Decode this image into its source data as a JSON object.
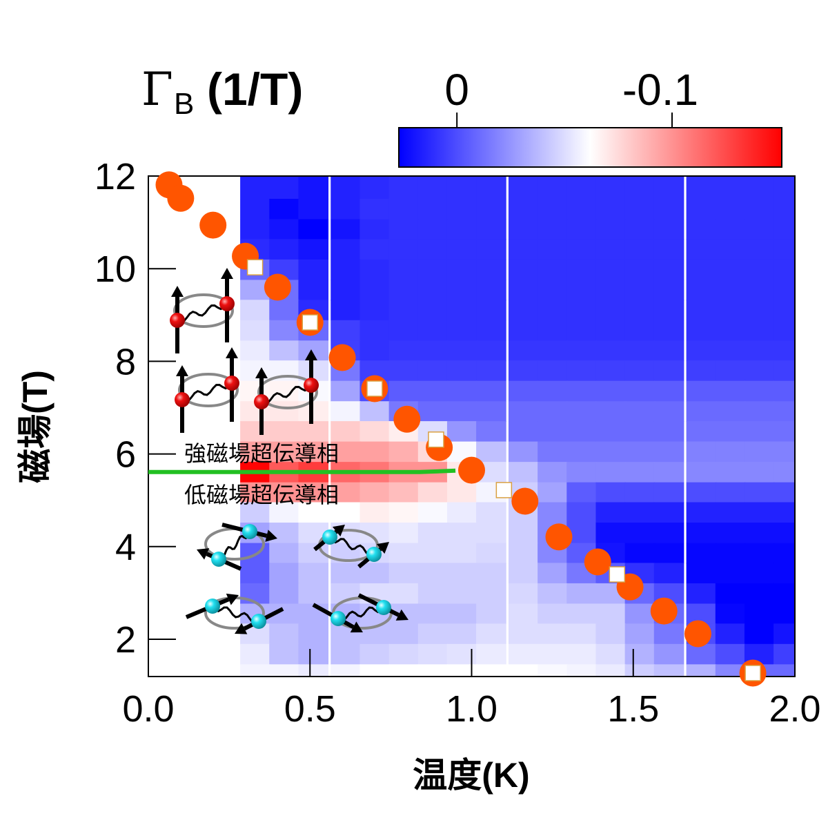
{
  "chart_data": {
    "type": "heatmap",
    "xlabel": "温度(K)",
    "ylabel": "磁場(T)",
    "xlim": [
      0,
      2.0
    ],
    "ylim": [
      1.2,
      12
    ],
    "x_ticks": [
      "0.0",
      "0.5",
      "1.0",
      "1.5",
      "2.0"
    ],
    "x_tick_values": [
      0,
      0.5,
      1.0,
      1.5,
      2.0
    ],
    "y_ticks": [
      "2",
      "4",
      "6",
      "8",
      "10",
      "12"
    ],
    "y_tick_values": [
      2,
      4,
      6,
      8,
      10,
      12
    ],
    "colorbar": {
      "title_symbol": "Γ",
      "title_subscript": "B",
      "title_unit": "(1/T)",
      "tick_labels": [
        "0",
        "-0.1"
      ],
      "tick_values": [
        0,
        -0.1
      ],
      "range": [
        0.027,
        -0.151
      ],
      "colors": {
        "low_end": "#0000ff",
        "mid": "#ffffff",
        "high_end": "#ff0000"
      },
      "mid_value": -0.062
    },
    "heatmap": {
      "T": [
        0.33,
        0.42,
        0.51,
        0.61,
        0.7,
        0.79,
        0.88,
        0.97,
        1.06,
        1.16,
        1.25,
        1.34,
        1.43,
        1.52,
        1.61,
        1.71,
        1.8,
        1.89,
        1.98
      ],
      "B": [
        11.73,
        11.29,
        10.85,
        10.42,
        9.98,
        9.54,
        9.11,
        8.67,
        8.23,
        7.8,
        7.36,
        6.92,
        6.49,
        6.05,
        5.61,
        5.17,
        4.74,
        4.3,
        3.86,
        3.43,
        2.99,
        2.55,
        2.12,
        1.68,
        1.24
      ],
      "values": [
        [
          0.015,
          0.015,
          0.02,
          0.015,
          0.012,
          0.01,
          0.01,
          0.01,
          0.01,
          0.01,
          0.01,
          0.01,
          0.01,
          0.01,
          0.01,
          0.01,
          0.01,
          0.01,
          0.01
        ],
        [
          0.015,
          0.025,
          0.02,
          0.015,
          0.01,
          0.01,
          0.01,
          0.01,
          0.01,
          0.01,
          0.01,
          0.01,
          0.01,
          0.01,
          0.01,
          0.01,
          0.01,
          0.01,
          0.01
        ],
        [
          0.015,
          0.02,
          0.027,
          0.02,
          0.012,
          0.01,
          0.01,
          0.01,
          0.01,
          0.01,
          0.01,
          0.01,
          0.01,
          0.01,
          0.01,
          0.01,
          0.01,
          0.01,
          0.01
        ],
        [
          0.012,
          0.015,
          0.02,
          0.015,
          0.01,
          0.01,
          0.01,
          0.01,
          0.01,
          0.01,
          0.01,
          0.01,
          0.01,
          0.01,
          0.01,
          0.01,
          0.01,
          0.01,
          0.01
        ],
        [
          -0.01,
          0.005,
          0.015,
          0.015,
          0.012,
          0.01,
          0.01,
          0.01,
          0.01,
          0.01,
          0.01,
          0.01,
          0.01,
          0.01,
          0.01,
          0.01,
          0.01,
          0.01,
          0.01
        ],
        [
          -0.032,
          -0.012,
          0.015,
          0.015,
          0.012,
          0.01,
          0.01,
          0.01,
          0.01,
          0.01,
          0.01,
          0.01,
          0.01,
          0.01,
          0.01,
          0.01,
          0.01,
          0.01,
          0.01
        ],
        [
          -0.048,
          -0.012,
          0.012,
          0.015,
          0.012,
          0.01,
          0.01,
          0.01,
          0.01,
          0.01,
          0.01,
          0.01,
          0.01,
          0.01,
          0.01,
          0.01,
          0.01,
          0.01,
          0.01
        ],
        [
          -0.05,
          -0.02,
          -0.01,
          0.005,
          0.01,
          0.01,
          0.01,
          0.01,
          0.01,
          0.01,
          0.01,
          0.01,
          0.01,
          0.01,
          0.01,
          0.01,
          0.01,
          0.01,
          0.01
        ],
        [
          -0.055,
          -0.04,
          -0.03,
          0.005,
          0.01,
          0.008,
          0.008,
          0.008,
          0.008,
          0.008,
          0.008,
          0.008,
          0.008,
          0.008,
          0.008,
          0.008,
          0.008,
          0.008,
          0.008
        ],
        [
          -0.058,
          -0.058,
          -0.05,
          -0.015,
          0.005,
          0.005,
          0.005,
          0.005,
          0.005,
          0.005,
          0.005,
          0.005,
          0.005,
          0.005,
          0.005,
          0.005,
          0.005,
          0.005,
          0.005
        ],
        [
          -0.065,
          -0.066,
          -0.06,
          -0.03,
          0.0,
          -0.005,
          -0.005,
          -0.005,
          -0.005,
          -0.005,
          -0.005,
          -0.005,
          -0.005,
          -0.005,
          -0.005,
          -0.005,
          -0.005,
          -0.005,
          -0.005
        ],
        [
          -0.07,
          -0.07,
          -0.068,
          -0.058,
          -0.04,
          -0.015,
          -0.01,
          -0.01,
          -0.01,
          -0.01,
          -0.01,
          -0.01,
          -0.01,
          -0.01,
          -0.01,
          -0.01,
          -0.01,
          -0.01,
          -0.01
        ],
        [
          -0.08,
          -0.08,
          -0.08,
          -0.08,
          -0.075,
          -0.068,
          -0.05,
          -0.025,
          -0.015,
          -0.01,
          -0.01,
          -0.01,
          -0.01,
          -0.01,
          -0.01,
          -0.012,
          -0.012,
          -0.012,
          -0.012
        ],
        [
          -0.095,
          -0.095,
          -0.095,
          -0.095,
          -0.095,
          -0.09,
          -0.075,
          -0.06,
          -0.04,
          -0.025,
          -0.015,
          -0.015,
          -0.015,
          -0.015,
          -0.015,
          -0.018,
          -0.018,
          -0.018,
          -0.018
        ],
        [
          -0.15,
          -0.12,
          -0.13,
          -0.115,
          -0.11,
          -0.1,
          -0.1,
          -0.07,
          -0.05,
          -0.04,
          -0.025,
          -0.02,
          -0.02,
          -0.02,
          -0.02,
          -0.02,
          -0.02,
          -0.02,
          -0.02
        ],
        [
          -0.1,
          -0.1,
          -0.1,
          -0.095,
          -0.09,
          -0.085,
          -0.075,
          -0.07,
          -0.058,
          -0.045,
          -0.03,
          -0.005,
          0.0,
          0.0,
          0.0,
          0.0,
          0.0,
          0.0,
          0.0
        ],
        [
          -0.045,
          -0.058,
          -0.062,
          -0.062,
          -0.068,
          -0.065,
          -0.06,
          -0.055,
          -0.05,
          -0.045,
          -0.02,
          0.0,
          0.015,
          0.015,
          0.015,
          0.015,
          0.015,
          0.015,
          0.015
        ],
        [
          -0.03,
          -0.04,
          -0.05,
          -0.05,
          -0.052,
          -0.055,
          -0.05,
          -0.05,
          -0.05,
          -0.045,
          -0.02,
          0.0,
          0.022,
          0.022,
          0.022,
          0.022,
          0.022,
          0.022,
          0.022
        ],
        [
          -0.005,
          -0.035,
          -0.045,
          -0.045,
          -0.048,
          -0.05,
          -0.05,
          -0.05,
          -0.048,
          -0.045,
          -0.02,
          -0.005,
          0.02,
          0.025,
          0.025,
          0.025,
          0.025,
          0.025,
          0.025
        ],
        [
          -0.005,
          -0.03,
          -0.04,
          -0.04,
          -0.04,
          -0.045,
          -0.045,
          -0.045,
          -0.045,
          -0.045,
          -0.03,
          -0.015,
          -0.005,
          0.01,
          0.015,
          0.025,
          0.025,
          0.025,
          0.025
        ],
        [
          -0.01,
          -0.03,
          -0.04,
          -0.045,
          -0.05,
          -0.05,
          -0.045,
          -0.045,
          -0.045,
          -0.048,
          -0.04,
          -0.035,
          -0.035,
          -0.01,
          0.0,
          0.015,
          0.027,
          0.027,
          0.027
        ],
        [
          -0.035,
          -0.035,
          -0.035,
          -0.035,
          -0.04,
          -0.04,
          -0.04,
          -0.04,
          -0.045,
          -0.05,
          -0.045,
          -0.045,
          -0.045,
          -0.025,
          -0.01,
          0.0,
          0.025,
          0.027,
          0.027
        ],
        [
          -0.05,
          -0.04,
          -0.035,
          -0.04,
          -0.04,
          -0.04,
          -0.045,
          -0.045,
          -0.05,
          -0.05,
          -0.05,
          -0.05,
          -0.045,
          -0.03,
          -0.015,
          0.0,
          0.015,
          0.027,
          0.02
        ],
        [
          -0.055,
          -0.04,
          -0.035,
          -0.04,
          -0.045,
          -0.048,
          -0.05,
          -0.052,
          -0.055,
          -0.055,
          -0.055,
          -0.055,
          -0.05,
          -0.035,
          -0.025,
          -0.01,
          0.0,
          0.015,
          0.005
        ],
        [
          -0.058,
          -0.058,
          -0.055,
          -0.058,
          -0.062,
          -0.062,
          -0.062,
          -0.062,
          -0.062,
          -0.062,
          -0.06,
          -0.058,
          -0.055,
          -0.045,
          -0.04,
          -0.035,
          -0.02,
          -0.01,
          -0.01
        ]
      ]
    },
    "series": [
      {
        "marker": "circle",
        "color": "#ff5500",
        "x": [
          0.064,
          0.1,
          0.2,
          0.3,
          0.4,
          0.5,
          0.6,
          0.7,
          0.8,
          0.9,
          1.0,
          1.165,
          1.27,
          1.39,
          1.49,
          1.595,
          1.7,
          1.87
        ],
        "y": [
          11.81,
          11.52,
          10.94,
          10.27,
          9.6,
          8.84,
          8.08,
          7.41,
          6.75,
          6.14,
          5.65,
          4.98,
          4.21,
          3.67,
          3.13,
          2.61,
          2.12,
          1.27
        ]
      },
      {
        "marker": "square",
        "color": "#ffffff",
        "edge_color": "#d9a040",
        "x": [
          0.33,
          0.5,
          0.7,
          0.89,
          1.1,
          1.45,
          1.87
        ],
        "y": [
          10.03,
          8.84,
          7.41,
          6.31,
          5.22,
          3.4,
          1.27
        ]
      },
      {
        "marker": "line",
        "color": "#22c022",
        "x": [
          0.0,
          0.84,
          0.95
        ],
        "y": [
          5.61,
          5.61,
          5.64
        ]
      }
    ],
    "annotations": {
      "high_field_phase": "強磁場超伝導相",
      "low_field_phase": "低磁場超伝導相"
    }
  }
}
